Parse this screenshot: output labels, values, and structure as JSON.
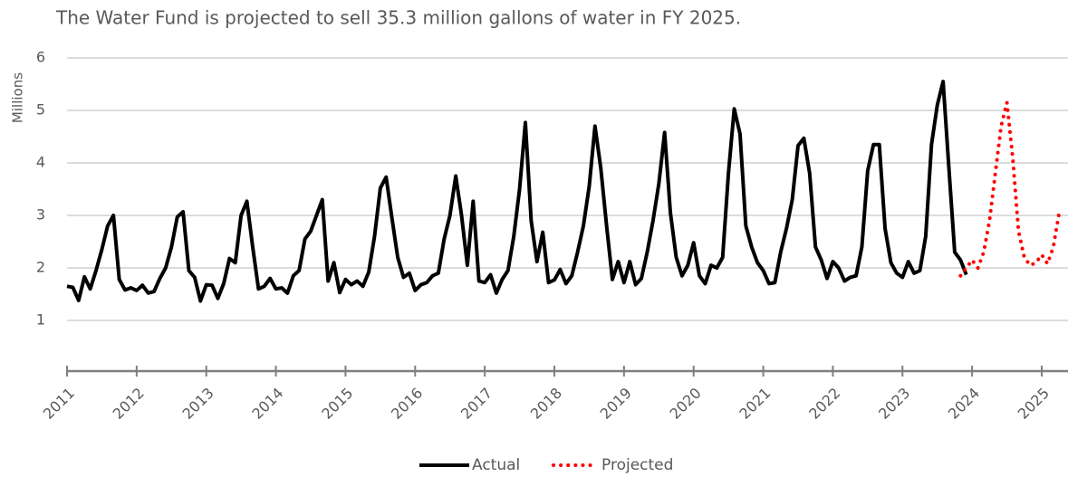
{
  "chart_data": {
    "type": "line",
    "title": "The Water Fund is projected to sell 35.3 million gallons of water in FY 2025.",
    "y_label": "Millions",
    "categories": [
      "2011",
      null,
      null,
      null,
      null,
      null,
      null,
      null,
      null,
      null,
      null,
      null,
      "2012",
      null,
      null,
      null,
      null,
      null,
      null,
      null,
      null,
      null,
      null,
      null,
      "2013",
      null,
      null,
      null,
      null,
      null,
      null,
      null,
      null,
      null,
      null,
      null,
      "2014",
      null,
      null,
      null,
      null,
      null,
      null,
      null,
      null,
      null,
      null,
      null,
      "2015",
      null,
      null,
      null,
      null,
      null,
      null,
      null,
      null,
      null,
      null,
      null,
      "2016",
      null,
      null,
      null,
      null,
      null,
      null,
      null,
      null,
      null,
      null,
      null,
      "2017",
      null,
      null,
      null,
      null,
      null,
      null,
      null,
      null,
      null,
      null,
      null,
      "2018",
      null,
      null,
      null,
      null,
      null,
      null,
      null,
      null,
      null,
      null,
      null,
      "2019",
      null,
      null,
      null,
      null,
      null,
      null,
      null,
      null,
      null,
      null,
      null,
      "2020",
      null,
      null,
      null,
      null,
      null,
      null,
      null,
      null,
      null,
      null,
      null,
      "2021",
      null,
      null,
      null,
      null,
      null,
      null,
      null,
      null,
      null,
      null,
      null,
      "2022",
      null,
      null,
      null,
      null,
      null,
      null,
      null,
      null,
      null,
      null,
      null,
      "2023",
      null,
      null,
      null,
      null,
      null,
      null,
      null,
      null,
      null,
      null,
      null,
      "2024",
      null,
      null,
      null,
      null,
      null,
      null,
      null,
      null,
      null,
      null,
      null,
      "2025",
      null,
      null,
      null
    ],
    "series": [
      {
        "name": "Actual",
        "color": "#000000",
        "dash": "solid",
        "values": [
          1.65,
          1.63,
          1.38,
          1.83,
          1.6,
          1.95,
          2.35,
          2.8,
          3.0,
          1.78,
          1.58,
          1.62,
          1.57,
          1.67,
          1.52,
          1.55,
          1.8,
          2.0,
          2.4,
          2.97,
          3.07,
          1.95,
          1.82,
          1.37,
          1.68,
          1.67,
          1.42,
          1.7,
          2.18,
          2.1,
          3.0,
          3.27,
          2.4,
          1.6,
          1.65,
          1.8,
          1.6,
          1.62,
          1.52,
          1.85,
          1.95,
          2.55,
          2.7,
          3.0,
          3.3,
          1.75,
          2.1,
          1.53,
          1.78,
          1.68,
          1.75,
          1.65,
          1.92,
          2.6,
          3.52,
          3.73,
          2.95,
          2.2,
          1.82,
          1.9,
          1.57,
          1.68,
          1.72,
          1.85,
          1.9,
          2.55,
          3.0,
          3.75,
          3.0,
          2.05,
          3.27,
          1.75,
          1.72,
          1.87,
          1.52,
          1.78,
          1.95,
          2.6,
          3.5,
          4.77,
          2.9,
          2.12,
          2.68,
          1.72,
          1.77,
          1.97,
          1.7,
          1.85,
          2.3,
          2.8,
          3.55,
          4.7,
          3.9,
          2.8,
          1.78,
          2.12,
          1.72,
          2.12,
          1.68,
          1.8,
          2.3,
          2.9,
          3.6,
          4.58,
          3.05,
          2.2,
          1.85,
          2.05,
          2.48,
          1.85,
          1.7,
          2.05,
          2.0,
          2.2,
          3.8,
          5.03,
          4.55,
          2.8,
          2.4,
          2.1,
          1.95,
          1.7,
          1.72,
          2.3,
          2.75,
          3.3,
          4.33,
          4.47,
          3.8,
          2.4,
          2.15,
          1.8,
          2.12,
          2.0,
          1.75,
          1.82,
          1.85,
          2.4,
          3.85,
          4.35,
          4.35,
          2.75,
          2.1,
          1.9,
          1.82,
          2.12,
          1.9,
          1.95,
          2.6,
          4.35,
          5.1,
          5.55,
          3.9,
          2.3,
          2.15,
          1.87,
          null,
          null,
          null,
          null,
          null,
          null,
          null,
          null,
          null,
          null,
          null,
          null,
          null,
          null,
          null,
          null
        ]
      },
      {
        "name": "Projected",
        "color": "#ff0000",
        "dash": "dotted",
        "values": [
          null,
          null,
          null,
          null,
          null,
          null,
          null,
          null,
          null,
          null,
          null,
          null,
          null,
          null,
          null,
          null,
          null,
          null,
          null,
          null,
          null,
          null,
          null,
          null,
          null,
          null,
          null,
          null,
          null,
          null,
          null,
          null,
          null,
          null,
          null,
          null,
          null,
          null,
          null,
          null,
          null,
          null,
          null,
          null,
          null,
          null,
          null,
          null,
          null,
          null,
          null,
          null,
          null,
          null,
          null,
          null,
          null,
          null,
          null,
          null,
          null,
          null,
          null,
          null,
          null,
          null,
          null,
          null,
          null,
          null,
          null,
          null,
          null,
          null,
          null,
          null,
          null,
          null,
          null,
          null,
          null,
          null,
          null,
          null,
          null,
          null,
          null,
          null,
          null,
          null,
          null,
          null,
          null,
          null,
          null,
          null,
          null,
          null,
          null,
          null,
          null,
          null,
          null,
          null,
          null,
          null,
          null,
          null,
          null,
          null,
          null,
          null,
          null,
          null,
          null,
          null,
          null,
          null,
          null,
          null,
          null,
          null,
          null,
          null,
          null,
          null,
          null,
          null,
          null,
          null,
          null,
          null,
          null,
          null,
          null,
          null,
          null,
          null,
          null,
          null,
          null,
          null,
          null,
          null,
          null,
          null,
          null,
          null,
          null,
          null,
          null,
          null,
          null,
          null,
          1.85,
          2.0,
          2.15,
          2.0,
          2.3,
          2.9,
          3.8,
          4.7,
          5.15,
          4.1,
          2.7,
          2.2,
          2.05,
          2.1,
          2.25,
          2.08,
          2.4,
          3.05
        ]
      }
    ],
    "ylim": [
      0,
      6
    ],
    "yticks": [
      1,
      2,
      3,
      4,
      5,
      6
    ],
    "grid": true,
    "legend": "bottom"
  }
}
